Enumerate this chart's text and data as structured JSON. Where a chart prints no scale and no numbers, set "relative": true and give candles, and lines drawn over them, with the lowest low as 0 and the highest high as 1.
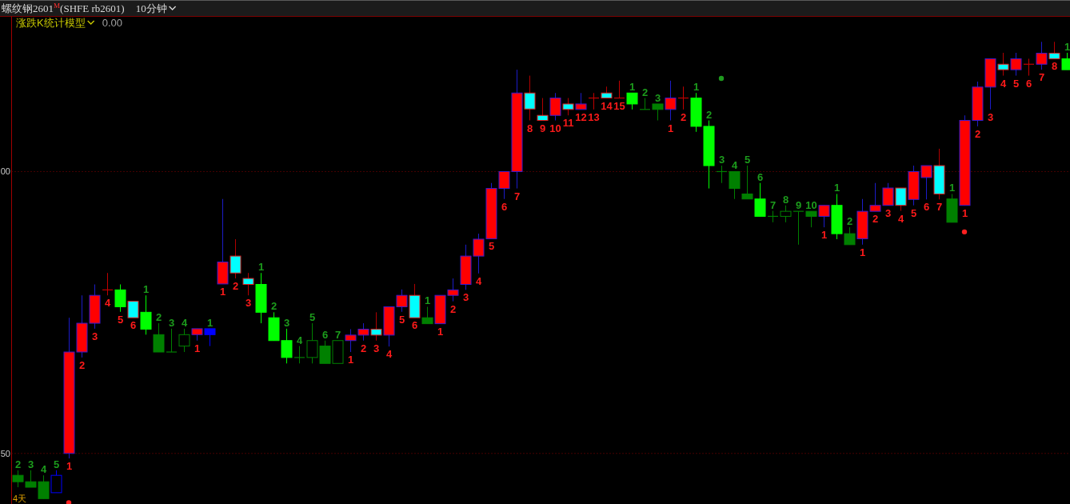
{
  "chart_data": {
    "type": "candlestick",
    "title": "螺纹钢2601$^{M}$(SHFE rb2601)",
    "subtitle": "10分钟",
    "annotations": [
      "涨跌K统计模型",
      "0.00",
      "4天",
      "00",
      "50"
    ],
    "relative": true,
    "marker": "circle",
    "ref_lines": [
      {
        "axis": "y",
        "value": 0.716,
        "color": "#8b0000",
        "line_style": "dotted"
      },
      {
        "axis": "y",
        "value": 0.099,
        "color": "#8b0000",
        "line_style": "dotted"
      }
    ],
    "categories": [
      null,
      null,
      null,
      null,
      null,
      null,
      null,
      null,
      null,
      null,
      null,
      null,
      null,
      null,
      null,
      null,
      null,
      null,
      null,
      null,
      null,
      null,
      null,
      null,
      null,
      null,
      null,
      null,
      null,
      null,
      null,
      null,
      null,
      null,
      null,
      null,
      null,
      null,
      null,
      null,
      null,
      null,
      null,
      null,
      null,
      null,
      null,
      null,
      null,
      null,
      null,
      null,
      null,
      null,
      null,
      null,
      null,
      null,
      null,
      null,
      null,
      null,
      null,
      null,
      null,
      null,
      null,
      null,
      null,
      null,
      null,
      null,
      null,
      null,
      null,
      null,
      null,
      null,
      null,
      null,
      null,
      null,
      null
    ],
    "ohlc": [
      [
        0.051,
        0.062,
        0.025,
        0.037
      ],
      [
        0.037,
        0.062,
        0.025,
        0.025
      ],
      [
        0.037,
        0.051,
        0,
        0
      ],
      [
        0.013,
        0.062,
        0.013,
        0.051
      ],
      [
        0.099,
        0.396,
        0.088,
        0.321
      ],
      [
        0.321,
        0.445,
        0.309,
        0.384
      ],
      [
        0.384,
        0.469,
        0.372,
        0.445
      ],
      [
        0.457,
        0.494,
        0.445,
        0.457
      ],
      [
        0.457,
        0.469,
        0.409,
        0.42
      ],
      [
        0.432,
        0.432,
        0.396,
        0.396
      ],
      [
        0.408,
        0.445,
        0.359,
        0.371
      ],
      [
        0.359,
        0.384,
        0.321,
        0.321
      ],
      [
        0.321,
        0.372,
        0.321,
        0.321
      ],
      [
        0.334,
        0.372,
        0.321,
        0.359
      ],
      [
        0.359,
        0.372,
        0.346,
        0.372
      ],
      [
        0.372,
        0.372,
        0.334,
        0.359
      ],
      [
        0.47,
        0.656,
        0.47,
        0.518
      ],
      [
        0.531,
        0.568,
        0.482,
        0.494
      ],
      [
        0.482,
        0.494,
        0.445,
        0.469
      ],
      [
        0.469,
        0.494,
        0.384,
        0.408
      ],
      [
        0.396,
        0.408,
        0.346,
        0.346
      ],
      [
        0.346,
        0.372,
        0.296,
        0.309
      ],
      [
        0.309,
        0.334,
        0.296,
        0.309
      ],
      [
        0.309,
        0.384,
        0.296,
        0.346
      ],
      [
        0.334,
        0.346,
        0.296,
        0.296
      ],
      [
        0.296,
        0.346,
        0.296,
        0.346
      ],
      [
        0.346,
        0.371,
        0.321,
        0.358
      ],
      [
        0.358,
        0.384,
        0.346,
        0.371
      ],
      [
        0.371,
        0.408,
        0.346,
        0.358
      ],
      [
        0.358,
        0.42,
        0.333,
        0.42
      ],
      [
        0.42,
        0.458,
        0.409,
        0.445
      ],
      [
        0.445,
        0.47,
        0.396,
        0.396
      ],
      [
        0.396,
        0.42,
        0.383,
        0.383
      ],
      [
        0.383,
        0.445,
        0.383,
        0.445
      ],
      [
        0.445,
        0.482,
        0.432,
        0.457
      ],
      [
        0.469,
        0.556,
        0.457,
        0.531
      ],
      [
        0.531,
        0.58,
        0.493,
        0.568
      ],
      [
        0.569,
        0.691,
        0.569,
        0.679
      ],
      [
        0.679,
        0.716,
        0.656,
        0.716
      ],
      [
        0.716,
        0.939,
        0.679,
        0.888
      ],
      [
        0.888,
        0.926,
        0.828,
        0.853
      ],
      [
        0.839,
        0.877,
        0.828,
        0.828
      ],
      [
        0.839,
        0.888,
        0.828,
        0.877
      ],
      [
        0.864,
        0.877,
        0.839,
        0.852
      ],
      [
        0.852,
        0.888,
        0.852,
        0.864
      ],
      [
        0.877,
        0.888,
        0.852,
        0.877
      ],
      [
        0.888,
        0.902,
        0.877,
        0.877
      ],
      [
        0.877,
        0.915,
        0.877,
        0.877
      ],
      [
        0.888,
        0.888,
        0.852,
        0.864
      ],
      [
        0.852,
        0.877,
        0.852,
        0.852
      ],
      [
        0.864,
        0.864,
        0.828,
        0.852
      ],
      [
        0.852,
        0.915,
        0.828,
        0.877
      ],
      [
        0.877,
        0.902,
        0.852,
        0.877
      ],
      [
        0.877,
        0.888,
        0.803,
        0.815
      ],
      [
        0.815,
        0.828,
        0.679,
        0.729
      ],
      [
        0.716,
        0.729,
        0.691,
        0.716
      ],
      [
        0.716,
        0.716,
        0.656,
        0.679
      ],
      [
        0.667,
        0.729,
        0.656,
        0.656
      ],
      [
        0.656,
        0.691,
        0.618,
        0.618
      ],
      [
        0.618,
        0.63,
        0.605,
        0.618
      ],
      [
        0.618,
        0.642,
        0.605,
        0.629
      ],
      [
        0.629,
        0.629,
        0.556,
        0.629
      ],
      [
        0.629,
        0.629,
        0.594,
        0.618
      ],
      [
        0.618,
        0.642,
        0.594,
        0.642
      ],
      [
        0.642,
        0.667,
        0.568,
        0.58
      ],
      [
        0.58,
        0.594,
        0.556,
        0.556
      ],
      [
        0.569,
        0.656,
        0.556,
        0.629
      ],
      [
        0.629,
        0.691,
        0.629,
        0.642
      ],
      [
        0.642,
        0.691,
        0.642,
        0.68
      ],
      [
        0.68,
        0.68,
        0.63,
        0.642
      ],
      [
        0.655,
        0.729,
        0.642,
        0.716
      ],
      [
        0.703,
        0.729,
        0.655,
        0.729
      ],
      [
        0.729,
        0.766,
        0.655,
        0.667
      ],
      [
        0.656,
        0.667,
        0.605,
        0.605
      ],
      [
        0.642,
        0.839,
        0.642,
        0.828
      ],
      [
        0.828,
        0.913,
        0.815,
        0.901
      ],
      [
        0.901,
        0.963,
        0.852,
        0.963
      ],
      [
        0.951,
        0.976,
        0.926,
        0.939
      ],
      [
        0.939,
        0.976,
        0.926,
        0.963
      ],
      [
        0.951,
        0.963,
        0.926,
        0.951
      ],
      [
        0.951,
        1.0,
        0.939,
        0.975
      ],
      [
        0.975,
        1.0,
        0.963,
        0.963
      ],
      [
        0.963,
        0.976,
        0.939,
        0.939
      ]
    ],
    "colors": [
      "#008000",
      "#008000",
      "#008000",
      "#0000ff",
      "#ff0000",
      "#ff0000",
      "#ff0000",
      "#c00000",
      "#00ff00",
      "#00ffff",
      "#00ff00",
      "#008000",
      "#008000",
      "#008000",
      "#ff0000",
      "#0000ff",
      "#ff0000",
      "#00ffff",
      "#00ffff",
      "#00ff00",
      "#00ff00",
      "#00ff00",
      "#008000",
      "#008000",
      "#008000",
      "#008000",
      "#ff0000",
      "#ff0000",
      "#00ffff",
      "#ff0000",
      "#ff0000",
      "#00ffff",
      "#008000",
      "#ff0000",
      "#ff0000",
      "#ff0000",
      "#ff0000",
      "#ff0000",
      "#ff0000",
      "#ff0000",
      "#00ffff",
      "#00ffff",
      "#ff0000",
      "#00ffff",
      "#ff0000",
      "#c00000",
      "#00ffff",
      "#c00000",
      "#00ff00",
      "#008000",
      "#008000",
      "#ff0000",
      "#c00000",
      "#00ff00",
      "#00ff00",
      "#008000",
      "#008000",
      "#008000",
      "#00ff00",
      "#008000",
      "#008000",
      "#008000",
      "#008000",
      "#ff0000",
      "#00ff00",
      "#008000",
      "#ff0000",
      "#ff0000",
      "#ff0000",
      "#00ffff",
      "#ff0000",
      "#ff0000",
      "#00ffff",
      "#008000",
      "#ff0000",
      "#ff0000",
      "#ff0000",
      "#00ffff",
      "#ff0000",
      "#c00000",
      "#ff0000",
      "#00ffff",
      "#00ff00"
    ],
    "value_labels": [
      "2",
      "3",
      "4",
      "5",
      "1",
      "2",
      "3",
      "4",
      "5",
      "6",
      "1",
      "2",
      "3",
      "4",
      "1",
      "1",
      "1",
      "2",
      "3",
      "1",
      "2",
      "3",
      "4",
      "5",
      "6",
      "7",
      "1",
      "2",
      "3",
      "4",
      "5",
      "6",
      "1",
      "1",
      "2",
      "3",
      "4",
      "5",
      "6",
      "7",
      "8",
      "9",
      "10",
      "11",
      "12",
      "13",
      "14",
      "15",
      "1",
      "2",
      "3",
      "1",
      "2",
      "1",
      "2",
      "3",
      "4",
      "5",
      "6",
      "7",
      "8",
      "9",
      "10",
      "1",
      "1",
      "2",
      "1",
      "2",
      "3",
      "4",
      "5",
      "6",
      "7",
      "1",
      "1",
      "2",
      "3",
      "4",
      "5",
      "6",
      "7",
      "8",
      "1"
    ],
    "series": [
      {
        "type": "scatter",
        "color": "#1f9a1f",
        "values": [
          null,
          null,
          null,
          null,
          null,
          null,
          null,
          null,
          null,
          null,
          null,
          null,
          null,
          null,
          null,
          null,
          null,
          null,
          null,
          null,
          null,
          null,
          null,
          null,
          null,
          null,
          null,
          null,
          null,
          null,
          null,
          null,
          null,
          null,
          null,
          null,
          null,
          null,
          null,
          null,
          null,
          null,
          null,
          null,
          null,
          null,
          null,
          null,
          null,
          null,
          null,
          null,
          null,
          null,
          null,
          0.92,
          null,
          null,
          null,
          null,
          null,
          null,
          null,
          null,
          null,
          null,
          null,
          null,
          null,
          null,
          null,
          null,
          null,
          null,
          null,
          null,
          null,
          null,
          null,
          null,
          null,
          null,
          null
        ]
      },
      {
        "type": "scatter",
        "color": "#ff2020",
        "values": [
          null,
          null,
          null,
          null,
          -0.009,
          null,
          null,
          null,
          null,
          null,
          null,
          null,
          null,
          null,
          null,
          null,
          null,
          null,
          null,
          null,
          null,
          null,
          null,
          null,
          null,
          null,
          null,
          null,
          null,
          null,
          null,
          null,
          null,
          null,
          null,
          null,
          null,
          null,
          null,
          null,
          null,
          null,
          null,
          null,
          null,
          null,
          null,
          null,
          null,
          null,
          null,
          null,
          null,
          null,
          null,
          null,
          null,
          null,
          null,
          null,
          null,
          null,
          null,
          null,
          null,
          null,
          null,
          null,
          null,
          null,
          null,
          null,
          null,
          null,
          0.584,
          null,
          null,
          null,
          null,
          null,
          null,
          null,
          null
        ]
      }
    ]
  }
}
